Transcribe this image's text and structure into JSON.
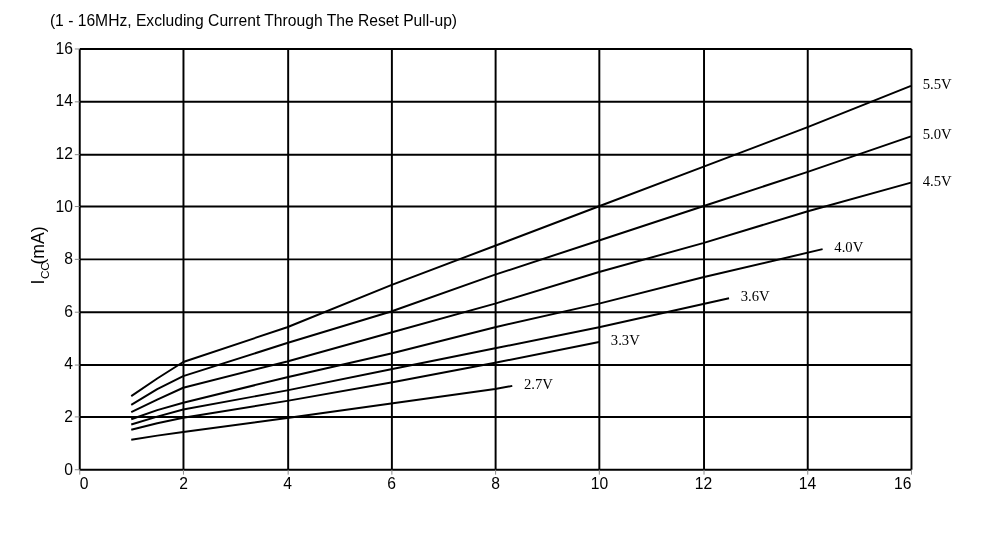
{
  "chart_data": {
    "type": "line",
    "title": "(1 - 16MHz, Excluding Current Through The Reset Pull-up)",
    "ylabel": "I$_{CC}$(mA)",
    "xlim": [
      0,
      16
    ],
    "xticks": [
      0,
      2,
      4,
      6,
      8,
      10,
      12,
      14,
      16
    ],
    "ylim": [
      0,
      16
    ],
    "yticks": [
      0,
      2,
      4,
      6,
      8,
      10,
      12,
      14,
      16
    ],
    "grid": true,
    "line_style": "solid",
    "series": [
      {
        "name": "5.5V",
        "color": "#000000",
        "x": [
          1,
          1.5,
          2,
          4,
          6,
          8,
          10,
          12,
          14,
          16
        ],
        "values": [
          2.78,
          3.45,
          4.08,
          5.4,
          7.0,
          8.5,
          10.0,
          11.5,
          13.0,
          14.58
        ]
      },
      {
        "name": "5.0V",
        "color": "#000000",
        "x": [
          1,
          1.5,
          2,
          4,
          6,
          8,
          10,
          12,
          14,
          16
        ],
        "values": [
          2.45,
          3.05,
          3.54,
          4.8,
          6.0,
          7.4,
          8.7,
          10.0,
          11.3,
          12.66
        ]
      },
      {
        "name": "4.5V",
        "color": "#000000",
        "x": [
          1,
          1.5,
          2,
          4,
          6,
          8,
          10,
          12,
          14,
          16
        ],
        "values": [
          2.17,
          2.65,
          3.1,
          4.1,
          5.2,
          6.3,
          7.5,
          8.6,
          9.8,
          10.9
        ]
      },
      {
        "name": "4.0V",
        "color": "#000000",
        "x": [
          1,
          1.5,
          2,
          4,
          6,
          8,
          10,
          12,
          14.3
        ],
        "values": [
          1.9,
          2.25,
          2.53,
          3.5,
          4.4,
          5.4,
          6.3,
          7.3,
          8.37
        ]
      },
      {
        "name": "3.6V",
        "color": "#000000",
        "x": [
          1,
          1.5,
          2,
          4,
          6,
          8,
          10,
          12.5
        ],
        "values": [
          1.7,
          2.0,
          2.27,
          3.0,
          3.8,
          4.6,
          5.4,
          6.5
        ]
      },
      {
        "name": "3.3V",
        "color": "#000000",
        "x": [
          1,
          1.5,
          2,
          4,
          6,
          8,
          10
        ],
        "values": [
          1.5,
          1.75,
          1.96,
          2.6,
          3.3,
          4.05,
          4.84
        ]
      },
      {
        "name": "2.7V",
        "color": "#000000",
        "x": [
          1,
          1.5,
          2,
          4,
          6,
          8,
          8.33
        ],
        "values": [
          1.12,
          1.28,
          1.42,
          1.95,
          2.5,
          3.05,
          3.17
        ]
      }
    ]
  }
}
